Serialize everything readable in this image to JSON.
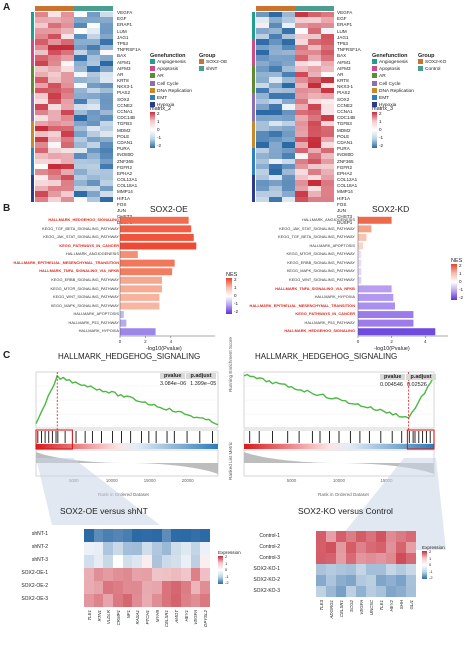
{
  "panels": {
    "A": "A",
    "B": "B",
    "C": "C"
  },
  "panelA": {
    "genes": [
      "VEGFA",
      "EGF",
      "ERAP1",
      "LUM",
      "JAG1",
      "TP53",
      "TNFRSF1A",
      "BAX",
      "AIFM1",
      "AIFM3",
      "AR",
      "KRT8",
      "NKX3-1",
      "PIAS2",
      "SOX2",
      "CCNE2",
      "CCNA1",
      "CDC14B",
      "TGFB3",
      "MDM2",
      "POLE",
      "CDAN1",
      "PURA",
      "INO80D",
      "ZNF365",
      "FGFR2",
      "EPHA2",
      "COL12A1",
      "COL18A1",
      "MMP14",
      "HIF1A",
      "FOS",
      "JUN",
      "CHST3",
      "DUSP1"
    ],
    "geneGroups": [
      5,
      5,
      5,
      5,
      5,
      5,
      5
    ],
    "legendTitleGroup": "Group",
    "legendTitleGenefunction": "Genefunction",
    "genefunction": [
      "Angiogenesis",
      "Apoptosis",
      "AR",
      "Cell Cycle",
      "DNA Replication",
      "EMT",
      "Hypoxia"
    ],
    "genefunctionColors": [
      "#1f9f94",
      "#d04a8a",
      "#5e8c2e",
      "#8c6fb0",
      "#c98a2e",
      "#2f7fc1",
      "#2d3b8c"
    ],
    "left": {
      "groups": [
        "SOX2-OE",
        "shNT"
      ],
      "groupColors": [
        "#c9732f",
        "#4a9d8f"
      ],
      "matrixTitle": "matrix_2",
      "scale": [
        "2",
        "1",
        "0",
        "-1",
        "-2"
      ]
    },
    "right": {
      "groups": [
        "SOX2-KO",
        "Control"
      ],
      "groupColors": [
        "#c9732f",
        "#4a9d8f"
      ],
      "matrixTitle": "matrix_3",
      "scale": [
        "2",
        "1",
        "0",
        "-1",
        "-2"
      ]
    }
  },
  "panelB": {
    "left": {
      "title": "SOX2-OE",
      "pathways": [
        "HALLMARK_HEDGEHOG_SIGNALING",
        "KEGG_TGF_BETA_SIGNALING_PATHWAY",
        "KEGG_JAK_STAT_SIGNALING_PATHWAY",
        "KEGG_PATHWAYS_IN_CANCER",
        "HALLMARK_ANGIOGENESIS",
        "HALLMARK_EPITHELIAL_MESENCHYMAL_TRANSITION",
        "HALLMARK_TNFA_SIGNALING_VIA_NFKB",
        "KEGG_ERBB_SIGNALING_PATHWAY",
        "KEGG_MTOR_SIGNALING_PATHWAY",
        "KEGG_WNT_SIGNALING_PATHWAY",
        "KEGG_MAPK_SIGNALING_PATHWAY",
        "HALLMARK_APOPTOSIS",
        "HALLMARK_P53_PATHWAY",
        "HALLMARK_HYPOXIA"
      ],
      "highlight": [
        true,
        false,
        false,
        true,
        false,
        true,
        true,
        false,
        false,
        false,
        false,
        false,
        false,
        false
      ],
      "values": [
        5.4,
        5.6,
        5.8,
        6.0,
        1.4,
        4.3,
        4.1,
        3.3,
        3.3,
        3.1,
        3.1,
        0.3,
        0.5,
        2.8
      ],
      "colors": [
        "#f26b4e",
        "#f15e44",
        "#ef553d",
        "#ec4a34",
        "#f48e74",
        "#f2775a",
        "#f27d60",
        "#f6a790",
        "#f7ab95",
        "#f8b39f",
        "#f8b6a2",
        "#c3b9f2",
        "#b7aaf0",
        "#9d86ea"
      ],
      "xlabel": "-log10(Pvalue)",
      "xticks": [
        "0",
        "2",
        "4"
      ],
      "xmax": 7
    },
    "right": {
      "title": "SOX2-KD",
      "pathways": [
        "HALLMARK_ANGIOGENESIS",
        "KEGG_JAK_STAT_SIGNALING_PATHWAY",
        "KEGG_TGF_BETA_SIGNALING_PATHWAY",
        "HALLMARK_APOPTOSIS",
        "KEGG_MTOR_SIGNALING_PATHWAY",
        "KEGG_ERBB_SIGNALING_PATHWAY",
        "KEGG_MAPK_SIGNALING_PATHWAY",
        "KEGG_WNT_SIGNALING_PATHWAY",
        "HALLMARK_TNFA_SIGNALING_VIA_NFKB",
        "HALLMARK_HYPOXIA",
        "HALLMARK_EPITHELIAL_MESENCHYMAL_TRANSITION",
        "KEGG_PATHWAYS_IN_CANCER",
        "HALLMARK_P53_PATHWAY",
        "HALLMARK_HEDGEHOG_SIGNALING"
      ],
      "highlight": [
        false,
        false,
        false,
        false,
        false,
        false,
        false,
        false,
        true,
        false,
        true,
        true,
        false,
        true
      ],
      "values": [
        2.0,
        0.8,
        0.5,
        0.3,
        0.2,
        0.2,
        0.2,
        0.2,
        2.0,
        2.1,
        2.2,
        3.3,
        3.3,
        4.6
      ],
      "colors": [
        "#ef6a4a",
        "#f4a28a",
        "#f7c3b3",
        "#f5d6cd",
        "#eee0f5",
        "#eadcf5",
        "#e5d6f6",
        "#e0d0f6",
        "#b89df0",
        "#b198f0",
        "#a98ff0",
        "#9a7bea",
        "#9b7cea",
        "#6f4be0"
      ],
      "xlabel": "-log10(Pvalue)",
      "xticks": [
        "0",
        "2",
        "4"
      ],
      "xmax": 5
    },
    "nesTitle": "NES",
    "nesScale": [
      "2",
      "1",
      "0",
      "-1",
      "-2"
    ]
  },
  "panelC": {
    "left": {
      "title": "HALLMARK_HEDGEHOG_SIGNALING",
      "pvalueLabel": "pvalue",
      "padjLabel": "p.adjust",
      "pvalue": "3.084e−06",
      "padj": "1.399e−05",
      "xlabel": "Rank in Ordered Dataset",
      "xticks": [
        "5000",
        "10000",
        "15000",
        "20000"
      ],
      "heatTitle": "SOX2-OE versus shNT",
      "rows": [
        "shNT-1",
        "shNT-2",
        "shNT-3",
        "SOX2-OE-1",
        "SOX2-OE-2",
        "SOX2-OE-3"
      ],
      "cols": [
        "TLE1",
        "RTN1",
        "VLDLR",
        "CRMP1",
        "NF1",
        "RASA1",
        "PTCH1",
        "MYH9",
        "CELSR1",
        "AMOT",
        "HEY1",
        "VEGFA",
        "DPYSL2"
      ],
      "legendTitle": "Expression",
      "scale": [
        "2",
        "1",
        "0",
        "-1",
        "-2"
      ]
    },
    "right": {
      "title": "HALLMARK_HEDGEHOG_SIGNALING",
      "pvalueLabel": "pvalue",
      "padjLabel": "p.adjust",
      "pvalue": "0.004546",
      "padj": "0.02526",
      "ylabel": "Running Enrichment Score",
      "ylabel2": "Ranked List Metric",
      "xlabel": "Rank in Ordered Dataset",
      "xticks": [
        "5000",
        "10000",
        "15000"
      ],
      "heatTitle": "SOX2-KO versus Control",
      "rows": [
        "Control-1",
        "Control-2",
        "Control-3",
        "SOX2-KO-1",
        "SOX2-KO-2",
        "SOX2-KO-3"
      ],
      "cols": [
        "TLE3",
        "ADGRG1",
        "CELSR1",
        "SCG2",
        "VEGFA",
        "UNC5C",
        "TLE1",
        "HEY2",
        "SHH",
        "GLI1"
      ],
      "legendTitle": "Expression",
      "scale": [
        "2",
        "1",
        "0",
        "-1",
        "-2"
      ]
    }
  }
}
